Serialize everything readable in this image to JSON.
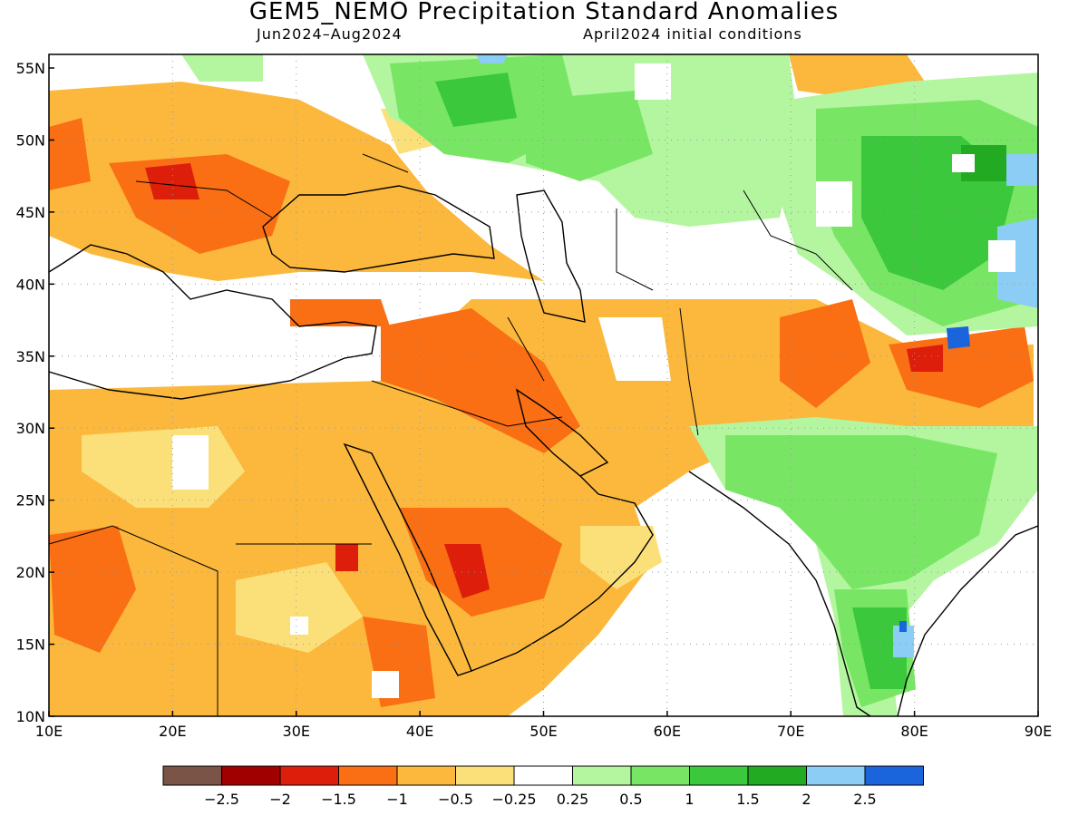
{
  "title": "GEM5_NEMO Precipitation Standard Anomalies",
  "period": "Jun2024–Aug2024",
  "init": "April2024 initial conditions",
  "lat_ticks": [
    "55N",
    "50N",
    "45N",
    "40N",
    "35N",
    "30N",
    "25N",
    "20N",
    "15N",
    "10N"
  ],
  "lon_ticks": [
    "10E",
    "20E",
    "30E",
    "40E",
    "50E",
    "60E",
    "70E",
    "80E",
    "90E"
  ],
  "legend": {
    "colors": [
      "#7a5446",
      "#a00000",
      "#dc1e0a",
      "#fa6e14",
      "#fbb83c",
      "#fbe07a",
      "#ffffff",
      "#b4f5a0",
      "#78e664",
      "#3cc83c",
      "#22aa22",
      "#8ccdf5",
      "#1a64dc"
    ],
    "labels": [
      "−2.5",
      "−2",
      "−1.5",
      "−1",
      "−0.5",
      "−0.25",
      "0.25",
      "0.5",
      "1",
      "1.5",
      "2",
      "2.5"
    ]
  }
}
